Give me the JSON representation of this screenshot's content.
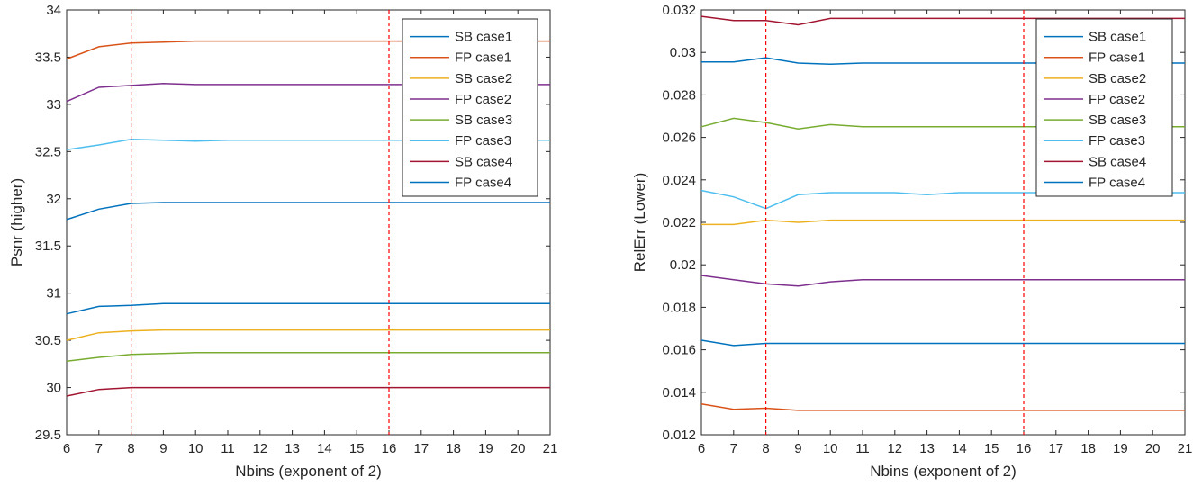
{
  "colors": {
    "blue": "#0072BD",
    "orange": "#D95319",
    "yellow": "#EDB120",
    "purple": "#7E2F8E",
    "green": "#77AC30",
    "cyan": "#4DBEEE",
    "maroon": "#A2142F",
    "marker": "#ff0000"
  },
  "chart_data": [
    {
      "type": "line",
      "xlabel": "Nbins (exponent of 2)",
      "ylabel": "Psnr (higher)",
      "x": [
        6,
        7,
        8,
        9,
        10,
        11,
        12,
        13,
        14,
        15,
        16,
        17,
        18,
        19,
        20,
        21
      ],
      "xlim": [
        6,
        21
      ],
      "ylim": [
        29.5,
        34
      ],
      "xticks": [
        "6",
        "7",
        "8",
        "9",
        "10",
        "11",
        "12",
        "13",
        "14",
        "15",
        "16",
        "17",
        "18",
        "19",
        "20",
        "21"
      ],
      "yticks": [
        "29.5",
        "30",
        "30.5",
        "31",
        "31.5",
        "32",
        "32.5",
        "33",
        "33.5",
        "34"
      ],
      "ytick_values": [
        29.5,
        30,
        30.5,
        31,
        31.5,
        32,
        32.5,
        33,
        33.5,
        34
      ],
      "reference_lines_x": [
        8,
        16
      ],
      "legend_position": "top-right",
      "series": [
        {
          "name": "SB case1",
          "color": "#0072BD",
          "values": [
            30.78,
            30.86,
            30.87,
            30.89,
            30.89,
            30.89,
            30.89,
            30.89,
            30.89,
            30.89,
            30.89,
            30.89,
            30.89,
            30.89,
            30.89,
            30.89
          ]
        },
        {
          "name": "FP case1",
          "color": "#D95319",
          "values": [
            33.48,
            33.61,
            33.65,
            33.66,
            33.67,
            33.67,
            33.67,
            33.67,
            33.67,
            33.67,
            33.67,
            33.67,
            33.67,
            33.67,
            33.67,
            33.67
          ]
        },
        {
          "name": "SB case2",
          "color": "#EDB120",
          "values": [
            30.5,
            30.58,
            30.6,
            30.61,
            30.61,
            30.61,
            30.61,
            30.61,
            30.61,
            30.61,
            30.61,
            30.61,
            30.61,
            30.61,
            30.61,
            30.61
          ]
        },
        {
          "name": "FP case2",
          "color": "#7E2F8E",
          "values": [
            33.03,
            33.18,
            33.2,
            33.22,
            33.21,
            33.21,
            33.21,
            33.21,
            33.21,
            33.21,
            33.21,
            33.21,
            33.21,
            33.21,
            33.21,
            33.21
          ]
        },
        {
          "name": "SB case3",
          "color": "#77AC30",
          "values": [
            30.28,
            30.32,
            30.35,
            30.36,
            30.37,
            30.37,
            30.37,
            30.37,
            30.37,
            30.37,
            30.37,
            30.37,
            30.37,
            30.37,
            30.37,
            30.37
          ]
        },
        {
          "name": "FP case3",
          "color": "#4DBEEE",
          "values": [
            32.52,
            32.57,
            32.63,
            32.62,
            32.61,
            32.62,
            32.62,
            32.62,
            32.62,
            32.62,
            32.62,
            32.62,
            32.62,
            32.62,
            32.62,
            32.62
          ]
        },
        {
          "name": "SB case4",
          "color": "#A2142F",
          "values": [
            29.91,
            29.98,
            30.0,
            30.0,
            30.0,
            30.0,
            30.0,
            30.0,
            30.0,
            30.0,
            30.0,
            30.0,
            30.0,
            30.0,
            30.0,
            30.0
          ]
        },
        {
          "name": "FP case4",
          "color": "#0072BD",
          "values": [
            31.78,
            31.89,
            31.95,
            31.96,
            31.96,
            31.96,
            31.96,
            31.96,
            31.96,
            31.96,
            31.96,
            31.96,
            31.96,
            31.96,
            31.96,
            31.96
          ]
        }
      ]
    },
    {
      "type": "line",
      "xlabel": "Nbins (exponent of 2)",
      "ylabel": "RelErr (Lower)",
      "x": [
        6,
        7,
        8,
        9,
        10,
        11,
        12,
        13,
        14,
        15,
        16,
        17,
        18,
        19,
        20,
        21
      ],
      "xlim": [
        6,
        21
      ],
      "ylim": [
        0.012,
        0.032
      ],
      "xticks": [
        "6",
        "7",
        "8",
        "9",
        "10",
        "11",
        "12",
        "13",
        "14",
        "15",
        "16",
        "17",
        "18",
        "19",
        "20",
        "21"
      ],
      "yticks": [
        "0.012",
        "0.014",
        "0.016",
        "0.018",
        "0.02",
        "0.022",
        "0.024",
        "0.026",
        "0.028",
        "0.03",
        "0.032"
      ],
      "ytick_values": [
        0.012,
        0.014,
        0.016,
        0.018,
        0.02,
        0.022,
        0.024,
        0.026,
        0.028,
        0.03,
        0.032
      ],
      "reference_lines_x": [
        8,
        16
      ],
      "legend_position": "top-right",
      "series": [
        {
          "name": "SB case1",
          "color": "#0072BD",
          "values": [
            0.01645,
            0.0162,
            0.0163,
            0.0163,
            0.0163,
            0.0163,
            0.0163,
            0.0163,
            0.0163,
            0.0163,
            0.0163,
            0.0163,
            0.0163,
            0.0163,
            0.0163,
            0.0163
          ]
        },
        {
          "name": "FP case1",
          "color": "#D95319",
          "values": [
            0.01345,
            0.0132,
            0.01325,
            0.01315,
            0.01315,
            0.01315,
            0.01315,
            0.01315,
            0.01315,
            0.01315,
            0.01315,
            0.01315,
            0.01315,
            0.01315,
            0.01315,
            0.01315
          ]
        },
        {
          "name": "SB case2",
          "color": "#EDB120",
          "values": [
            0.0219,
            0.0219,
            0.0221,
            0.022,
            0.0221,
            0.0221,
            0.0221,
            0.0221,
            0.0221,
            0.0221,
            0.0221,
            0.0221,
            0.0221,
            0.0221,
            0.0221,
            0.0221
          ]
        },
        {
          "name": "FP case2",
          "color": "#7E2F8E",
          "values": [
            0.0195,
            0.0193,
            0.0191,
            0.019,
            0.0192,
            0.0193,
            0.0193,
            0.0193,
            0.0193,
            0.0193,
            0.0193,
            0.0193,
            0.0193,
            0.0193,
            0.0193,
            0.0193
          ]
        },
        {
          "name": "SB case3",
          "color": "#77AC30",
          "values": [
            0.0265,
            0.0269,
            0.0267,
            0.0264,
            0.0266,
            0.0265,
            0.0265,
            0.0265,
            0.0265,
            0.0265,
            0.0265,
            0.0265,
            0.0265,
            0.0265,
            0.0265,
            0.0265
          ]
        },
        {
          "name": "FP case3",
          "color": "#4DBEEE",
          "values": [
            0.0235,
            0.0232,
            0.02265,
            0.0233,
            0.0234,
            0.0234,
            0.0234,
            0.0233,
            0.0234,
            0.0234,
            0.0234,
            0.0234,
            0.0234,
            0.0234,
            0.0234,
            0.0234
          ]
        },
        {
          "name": "SB case4",
          "color": "#A2142F",
          "values": [
            0.0317,
            0.0315,
            0.0315,
            0.0313,
            0.0316,
            0.0316,
            0.0316,
            0.0316,
            0.0316,
            0.0316,
            0.0316,
            0.0316,
            0.0316,
            0.0316,
            0.0316,
            0.0316
          ]
        },
        {
          "name": "FP case4",
          "color": "#0072BD",
          "values": [
            0.02955,
            0.02955,
            0.02975,
            0.0295,
            0.02945,
            0.0295,
            0.0295,
            0.0295,
            0.0295,
            0.0295,
            0.0295,
            0.0295,
            0.0295,
            0.0295,
            0.0295,
            0.0295
          ]
        }
      ]
    }
  ]
}
